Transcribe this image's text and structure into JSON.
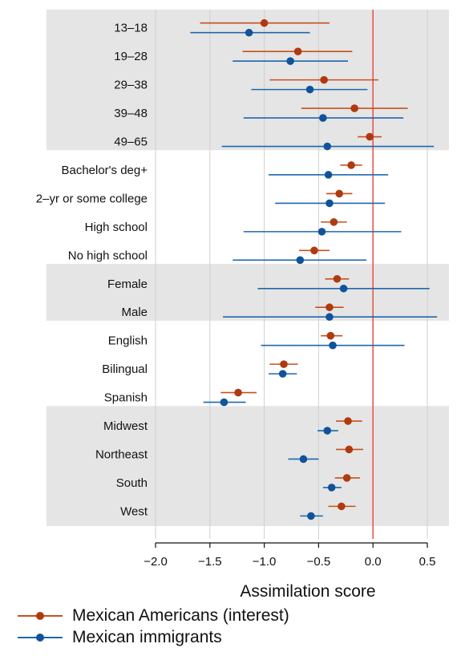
{
  "chart_data": {
    "type": "dot-errorbar",
    "xlabel": "Assimilation score",
    "xlim": [
      -2.0,
      0.7
    ],
    "xticks": [
      -2.0,
      -1.5,
      -1.0,
      -0.5,
      0.0,
      0.5
    ],
    "xtick_labels": [
      "−2.0",
      "−1.5",
      "−1.0",
      "−0.5",
      "0.0",
      "0.5"
    ],
    "reference_line": 0.0,
    "reference_color": "#e8413a",
    "grid": true,
    "legend_position": "bottom",
    "groups": [
      {
        "shaded": true,
        "categories": [
          "13–18",
          "19–28",
          "29–38",
          "39–48",
          "49–65"
        ]
      },
      {
        "shaded": false,
        "categories": [
          "Bachelor's deg+",
          "2–yr or some college",
          "High school",
          "No high school"
        ]
      },
      {
        "shaded": true,
        "categories": [
          "Female",
          "Male"
        ]
      },
      {
        "shaded": false,
        "categories": [
          "English",
          "Bilingual",
          "Spanish"
        ]
      },
      {
        "shaded": true,
        "categories": [
          "Midwest",
          "Northeast",
          "South",
          "West"
        ]
      }
    ],
    "series": [
      {
        "name": "Mexican Americans (interest)",
        "color": "#c8501e",
        "values": [
          {
            "est": -1.0,
            "lo": -1.59,
            "hi": -0.4
          },
          {
            "est": -0.69,
            "lo": -1.2,
            "hi": -0.19
          },
          {
            "est": -0.45,
            "lo": -0.95,
            "hi": 0.05
          },
          {
            "est": -0.17,
            "lo": -0.66,
            "hi": 0.32
          },
          {
            "est": -0.03,
            "lo": -0.14,
            "hi": 0.08
          },
          {
            "est": -0.2,
            "lo": -0.3,
            "hi": -0.1
          },
          {
            "est": -0.31,
            "lo": -0.43,
            "hi": -0.19
          },
          {
            "est": -0.36,
            "lo": -0.48,
            "hi": -0.24
          },
          {
            "est": -0.54,
            "lo": -0.68,
            "hi": -0.4
          },
          {
            "est": -0.33,
            "lo": -0.44,
            "hi": -0.22
          },
          {
            "est": -0.4,
            "lo": -0.53,
            "hi": -0.27
          },
          {
            "est": -0.39,
            "lo": -0.48,
            "hi": -0.28
          },
          {
            "est": -0.82,
            "lo": -0.95,
            "hi": -0.69
          },
          {
            "est": -1.24,
            "lo": -1.4,
            "hi": -1.07
          },
          {
            "est": -0.23,
            "lo": -0.34,
            "hi": -0.1
          },
          {
            "est": -0.22,
            "lo": -0.34,
            "hi": -0.09
          },
          {
            "est": -0.24,
            "lo": -0.35,
            "hi": -0.12
          },
          {
            "est": -0.29,
            "lo": -0.41,
            "hi": -0.16
          }
        ]
      },
      {
        "name": "Mexican immigrants",
        "color": "#1f67ad",
        "values": [
          {
            "est": -1.14,
            "lo": -1.68,
            "hi": -0.58
          },
          {
            "est": -0.76,
            "lo": -1.29,
            "hi": -0.23
          },
          {
            "est": -0.58,
            "lo": -1.12,
            "hi": -0.05
          },
          {
            "est": -0.46,
            "lo": -1.19,
            "hi": 0.28
          },
          {
            "est": -0.42,
            "lo": -1.39,
            "hi": 0.56
          },
          {
            "est": -0.41,
            "lo": -0.96,
            "hi": 0.14
          },
          {
            "est": -0.4,
            "lo": -0.9,
            "hi": 0.11
          },
          {
            "est": -0.47,
            "lo": -1.19,
            "hi": 0.26
          },
          {
            "est": -0.67,
            "lo": -1.29,
            "hi": -0.06
          },
          {
            "est": -0.27,
            "lo": -1.06,
            "hi": 0.52
          },
          {
            "est": -0.4,
            "lo": -1.38,
            "hi": 0.59
          },
          {
            "est": -0.37,
            "lo": -1.03,
            "hi": 0.29
          },
          {
            "est": -0.83,
            "lo": -0.96,
            "hi": -0.7
          },
          {
            "est": -1.37,
            "lo": -1.56,
            "hi": -1.17
          },
          {
            "est": -0.42,
            "lo": -0.51,
            "hi": -0.32
          },
          {
            "est": -0.64,
            "lo": -0.78,
            "hi": -0.5
          },
          {
            "est": -0.38,
            "lo": -0.46,
            "hi": -0.29
          },
          {
            "est": -0.57,
            "lo": -0.67,
            "hi": -0.46
          }
        ]
      }
    ]
  },
  "legend": {
    "items": [
      {
        "label": "Mexican Americans (interest)",
        "color": "#c8501e"
      },
      {
        "label": "Mexican immigrants",
        "color": "#1f67ad"
      }
    ]
  }
}
